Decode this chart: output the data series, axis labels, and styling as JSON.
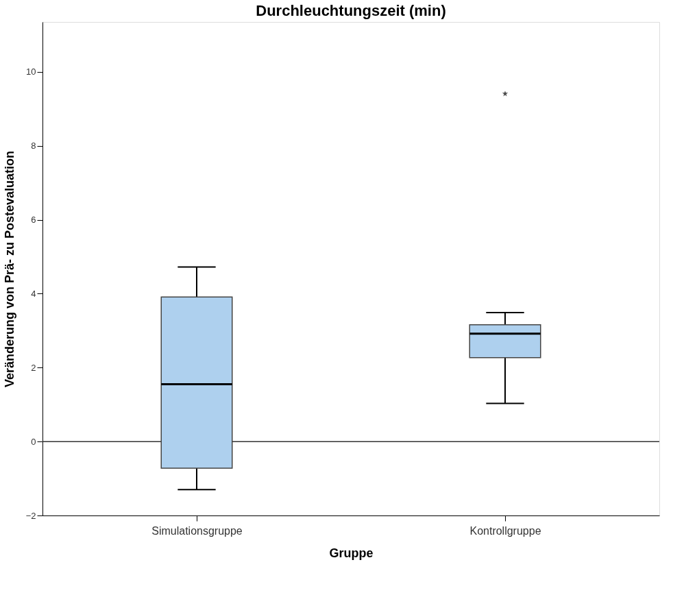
{
  "chart_data": {
    "type": "box",
    "title": "Durchleuchtungszeit (min)",
    "xlabel": "Gruppe",
    "ylabel": "Veränderung von Prä- zu Postevaluation",
    "categories": [
      "Simulationsgruppe",
      "Kontrollgruppe"
    ],
    "boxes": [
      {
        "low": -1.3,
        "q1": -0.72,
        "median": 1.55,
        "q3": 3.91,
        "high": 4.72
      },
      {
        "low": 1.03,
        "q1": 2.27,
        "median": 2.92,
        "q3": 3.16,
        "high": 3.49,
        "outliers": [
          9.41
        ]
      }
    ],
    "color": "#aed0ee",
    "ylim": [
      -2,
      11.35
    ],
    "yticks": [
      -2,
      0,
      2,
      4,
      6,
      8,
      10
    ],
    "grid": false,
    "marker": "star",
    "ref_lines": [
      {
        "axis": "y",
        "value": 0,
        "label": null
      }
    ]
  }
}
